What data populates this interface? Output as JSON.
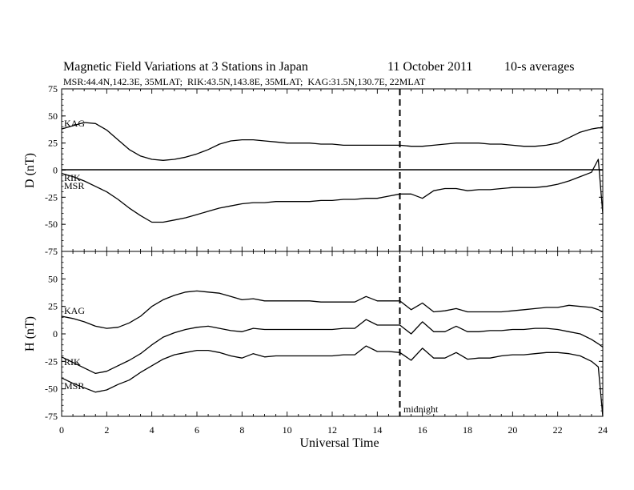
{
  "header": {
    "title": "Magnetic Field Variations at 3 Stations in Japan",
    "date": "11 October 2011",
    "averaging": "10-s averages",
    "stations": "MSR:44.4N,142.3E, 35MLAT;  RIK:43.5N,143.8E, 35MLAT;  KAG:31.5N,130.7E, 22MLAT"
  },
  "annotations": {
    "midnight_label": "midnight",
    "midnight_hour": 15
  },
  "chart_data": [
    {
      "type": "line",
      "panel": "top",
      "ylabel": "D (nT)",
      "ylim": [
        -75,
        75
      ],
      "yticks": [
        75,
        50,
        25,
        0,
        -25,
        -50,
        -75
      ],
      "zero_line": true,
      "x": [
        0,
        0.5,
        1,
        1.5,
        2,
        2.5,
        3,
        3.5,
        4,
        4.5,
        5,
        5.5,
        6,
        6.5,
        7,
        7.5,
        8,
        8.5,
        9,
        9.5,
        10,
        10.5,
        11,
        11.5,
        12,
        12.5,
        13,
        13.5,
        14,
        14.5,
        15,
        15.5,
        16,
        16.5,
        17,
        17.5,
        18,
        18.5,
        19,
        19.5,
        20,
        20.5,
        21,
        21.5,
        22,
        22.5,
        23,
        23.5,
        23.8,
        24
      ],
      "series": [
        {
          "name": "KAG",
          "values": [
            38,
            41,
            44,
            43,
            37,
            28,
            19,
            13,
            10,
            9,
            10,
            12,
            15,
            19,
            24,
            27,
            28,
            28,
            27,
            26,
            25,
            25,
            25,
            24,
            24,
            23,
            23,
            23,
            23,
            23,
            23,
            22,
            22,
            23,
            24,
            25,
            25,
            25,
            24,
            24,
            23,
            22,
            22,
            23,
            25,
            30,
            35,
            38,
            39,
            39
          ]
        },
        {
          "name": "MSR",
          "values": [
            -3,
            -6,
            -10,
            -15,
            -20,
            -27,
            -35,
            -42,
            -48,
            -48,
            -46,
            -44,
            -41,
            -38,
            -35,
            -33,
            -31,
            -30,
            -30,
            -29,
            -29,
            -29,
            -29,
            -28,
            -28,
            -27,
            -27,
            -26,
            -26,
            -24,
            -22,
            -22,
            -26,
            -19,
            -17,
            -17,
            -19,
            -18,
            -18,
            -17,
            -16,
            -16,
            -16,
            -15,
            -13,
            -10,
            -6,
            -2,
            10,
            -40
          ]
        }
      ],
      "labels": {
        "KAG": "KAG",
        "RIK": "RIK",
        "MSR": "MSR"
      }
    },
    {
      "type": "line",
      "panel": "bottom",
      "ylabel": "H (nT)",
      "ylim": [
        -75,
        75
      ],
      "yticks": [
        50,
        25,
        0,
        -25,
        -50,
        -75
      ],
      "xlabel": "Universal Time",
      "xlim": [
        0,
        24
      ],
      "xticks": [
        0,
        2,
        4,
        6,
        8,
        10,
        12,
        14,
        16,
        18,
        20,
        22,
        24
      ],
      "x": [
        0,
        0.5,
        1,
        1.5,
        2,
        2.5,
        3,
        3.5,
        4,
        4.5,
        5,
        5.5,
        6,
        6.5,
        7,
        7.5,
        8,
        8.5,
        9,
        9.5,
        10,
        10.5,
        11,
        11.5,
        12,
        12.5,
        13,
        13.5,
        14,
        14.5,
        15,
        15.5,
        16,
        16.5,
        17,
        17.5,
        18,
        18.5,
        19,
        19.5,
        20,
        20.5,
        21,
        21.5,
        22,
        22.5,
        23,
        23.5,
        23.8,
        24
      ],
      "series": [
        {
          "name": "KAG",
          "values": [
            16,
            14,
            11,
            7,
            5,
            6,
            10,
            16,
            25,
            31,
            35,
            38,
            39,
            38,
            37,
            34,
            31,
            32,
            30,
            30,
            30,
            30,
            30,
            29,
            29,
            29,
            29,
            34,
            30,
            30,
            30,
            22,
            28,
            20,
            21,
            23,
            20,
            20,
            20,
            20,
            21,
            22,
            23,
            24,
            24,
            26,
            25,
            24,
            22,
            20
          ]
        },
        {
          "name": "RIK",
          "values": [
            -21,
            -26,
            -31,
            -36,
            -34,
            -29,
            -24,
            -18,
            -10,
            -3,
            1,
            4,
            6,
            7,
            5,
            3,
            2,
            5,
            4,
            4,
            4,
            4,
            4,
            4,
            4,
            5,
            5,
            13,
            8,
            8,
            8,
            0,
            11,
            2,
            2,
            7,
            2,
            2,
            3,
            3,
            4,
            4,
            5,
            5,
            4,
            2,
            0,
            -5,
            -9,
            -12
          ]
        },
        {
          "name": "MSR",
          "values": [
            -40,
            -45,
            -49,
            -53,
            -51,
            -46,
            -42,
            -35,
            -29,
            -23,
            -19,
            -17,
            -15,
            -15,
            -17,
            -20,
            -22,
            -18,
            -21,
            -20,
            -20,
            -20,
            -20,
            -20,
            -20,
            -19,
            -19,
            -11,
            -16,
            -16,
            -17,
            -24,
            -13,
            -22,
            -22,
            -17,
            -23,
            -22,
            -22,
            -20,
            -19,
            -19,
            -18,
            -17,
            -17,
            -18,
            -20,
            -25,
            -30,
            -75
          ]
        }
      ],
      "labels": {
        "KAG": "KAG",
        "RIK": "RIK",
        "MSR": "MSR"
      }
    }
  ]
}
